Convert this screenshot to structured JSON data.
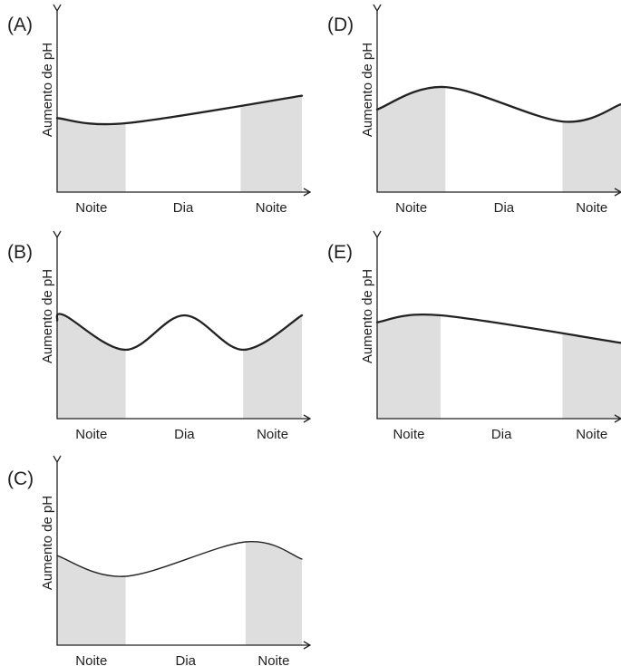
{
  "chart_data": [
    {
      "type": "area",
      "panel_label": "(A)",
      "ylabel": "Aumento de pH",
      "period_labels": [
        "Noite",
        "Dia",
        "Noite"
      ],
      "x_range": [
        0,
        1
      ],
      "y_range": [
        0,
        1
      ],
      "shaded_x": [
        [
          0,
          0.28
        ],
        [
          0.75,
          1.0
        ]
      ],
      "curve": {
        "x": [
          0,
          0.28,
          1.0
        ],
        "y": [
          0.43,
          0.4,
          0.56
        ]
      },
      "curve_style": "bold"
    },
    {
      "type": "area",
      "panel_label": "(B)",
      "ylabel": "Aumento de pH",
      "period_labels": [
        "Noite",
        "Dia",
        "Noite"
      ],
      "x_range": [
        0,
        1
      ],
      "y_range": [
        0,
        1
      ],
      "shaded_x": [
        [
          0,
          0.28
        ],
        [
          0.76,
          1.0
        ]
      ],
      "curve": {
        "x": [
          0,
          0.03,
          0.28,
          0.52,
          0.76,
          1.0
        ],
        "y": [
          0.57,
          0.6,
          0.4,
          0.6,
          0.4,
          0.6
        ]
      },
      "curve_style": "bold"
    },
    {
      "type": "area",
      "panel_label": "(C)",
      "ylabel": "Aumento de pH",
      "period_labels": [
        "Noite",
        "Dia",
        "Noite"
      ],
      "x_range": [
        0,
        1
      ],
      "y_range": [
        0,
        1
      ],
      "shaded_x": [
        [
          0,
          0.28
        ],
        [
          0.77,
          1.0
        ]
      ],
      "curve": {
        "x": [
          0,
          0.28,
          0.77,
          1.0
        ],
        "y": [
          0.52,
          0.4,
          0.6,
          0.5
        ]
      },
      "curve_style": "thin"
    },
    {
      "type": "area",
      "panel_label": "(D)",
      "ylabel": "Aumento de pH",
      "period_labels": [
        "Noite",
        "Dia",
        "Noite"
      ],
      "x_range": [
        0,
        1
      ],
      "y_range": [
        0,
        1
      ],
      "shaded_x": [
        [
          0,
          0.28
        ],
        [
          0.76,
          1.0
        ]
      ],
      "curve": {
        "x": [
          0,
          0.28,
          0.76,
          1.0
        ],
        "y": [
          0.48,
          0.61,
          0.41,
          0.51
        ]
      },
      "curve_style": "bold"
    },
    {
      "type": "area",
      "panel_label": "(E)",
      "ylabel": "Aumento de pH",
      "period_labels": [
        "Noite",
        "Dia",
        "Noite"
      ],
      "x_range": [
        0,
        1
      ],
      "y_range": [
        0,
        1
      ],
      "shaded_x": [
        [
          0,
          0.26
        ],
        [
          0.76,
          1.0
        ]
      ],
      "curve": {
        "x": [
          0,
          0.26,
          1.0
        ],
        "y": [
          0.56,
          0.6,
          0.44
        ]
      },
      "curve_style": "bold"
    }
  ],
  "colors": {
    "shade": "#dedede",
    "curve": "#222222",
    "axis": "#222222",
    "text": "#222222"
  }
}
